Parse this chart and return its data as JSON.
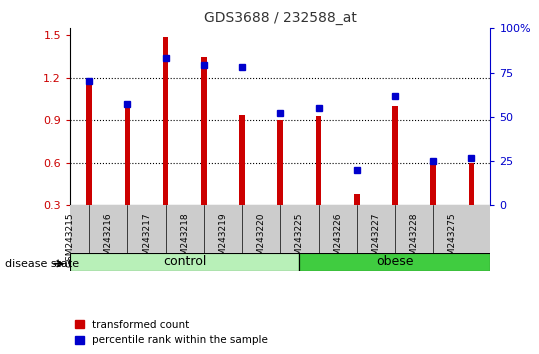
{
  "title": "GDS3688 / 232588_at",
  "samples": [
    "GSM243215",
    "GSM243216",
    "GSM243217",
    "GSM243218",
    "GSM243219",
    "GSM243220",
    "GSM243225",
    "GSM243226",
    "GSM243227",
    "GSM243228",
    "GSM243275"
  ],
  "red_values": [
    1.2,
    1.02,
    1.49,
    1.35,
    0.94,
    0.9,
    0.93,
    0.38,
    1.0,
    0.6,
    0.6
  ],
  "blue_pct": [
    70,
    57,
    83,
    79,
    78,
    52,
    55,
    20,
    62,
    25,
    27
  ],
  "groups": [
    {
      "label": "control",
      "start": 0,
      "end": 6,
      "color": "#b8f0b8"
    },
    {
      "label": "obese",
      "start": 6,
      "end": 11,
      "color": "#40cc40"
    }
  ],
  "ylim_left": [
    0.3,
    1.55
  ],
  "ylim_right": [
    0,
    100
  ],
  "yticks_left": [
    0.3,
    0.6,
    0.9,
    1.2,
    1.5
  ],
  "yticks_right": [
    0,
    25,
    50,
    75,
    100
  ],
  "right_tick_labels": [
    "0",
    "25",
    "50",
    "75",
    "100%"
  ],
  "bar_width": 0.15,
  "red_color": "#cc0000",
  "blue_color": "#0000cc",
  "bar_bottom": 0.3,
  "title_color": "#333333",
  "disease_state_label": "disease state",
  "legend_red": "transformed count",
  "legend_blue": "percentile rank within the sample",
  "xtick_bg_color": "#cccccc",
  "group_control_color": "#ccffcc",
  "group_obese_color": "#44cc44",
  "plot_bg": "#ffffff"
}
